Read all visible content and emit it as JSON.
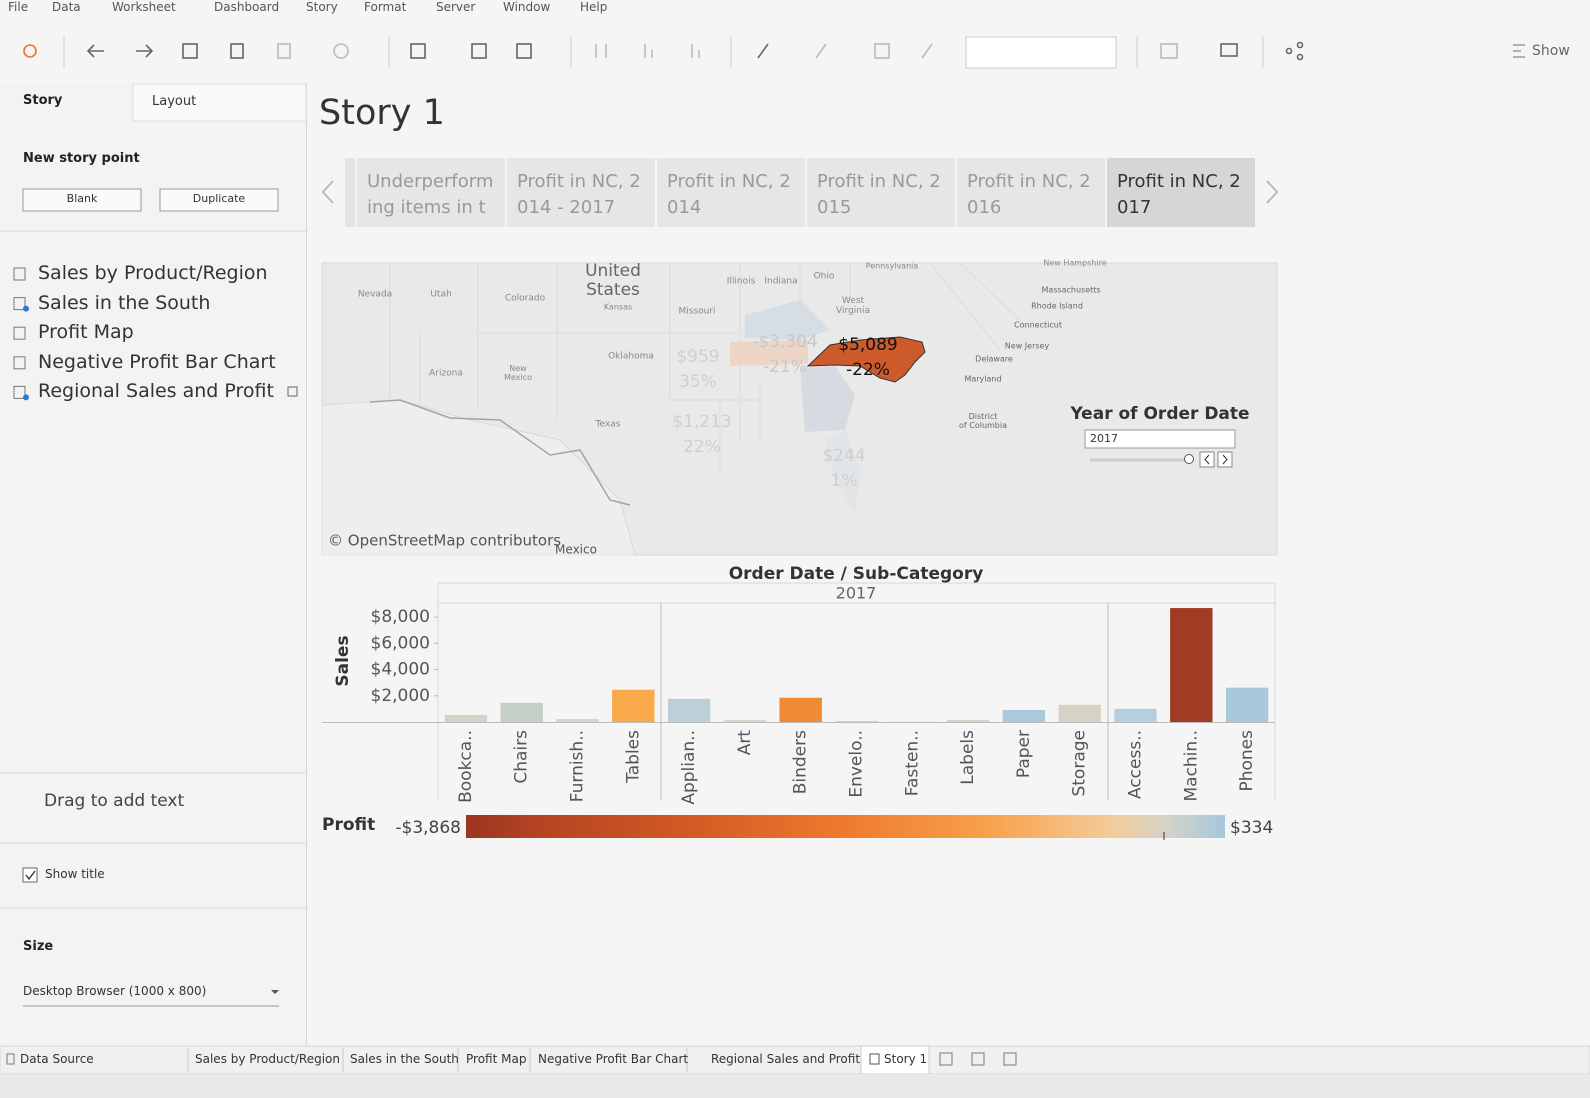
{
  "menu": [
    "File",
    "Data",
    "Worksheet",
    "Dashboard",
    "Story",
    "Format",
    "Server",
    "Window",
    "Help"
  ],
  "toolbar": {
    "show_me": "Show"
  },
  "sidebar": {
    "tabs": [
      "Story",
      "Layout"
    ],
    "new_story_point": "New story point",
    "buttons": [
      "Blank",
      "Duplicate"
    ],
    "sheets": [
      "Sales by Product/Region",
      "Sales in the South",
      "Profit Map",
      "Negative Profit Bar Chart",
      "Regional Sales and Profit"
    ],
    "drag_text": "Drag to add text",
    "show_title": "Show title",
    "size_label": "Size",
    "size_value": "Desktop Browser (1000 x 800)"
  },
  "story": {
    "title": "Story 1",
    "points": [
      "Underperforming items in the",
      "Profit in NC, 2014 - 2017",
      "Profit in NC, 2014",
      "Profit in NC, 2015",
      "Profit in NC, 2016",
      "Profit in NC, 2017"
    ]
  },
  "map": {
    "labels": [
      "United States",
      "Mexico",
      "Nevada",
      "Utah",
      "Colorado",
      "Kansas",
      "Missouri",
      "Illinois",
      "Indiana",
      "Ohio",
      "Pennsylvania",
      "West Virginia",
      "Oklahoma",
      "Arizona",
      "New Mexico",
      "Texas",
      "New Hampshire",
      "Massachusetts",
      "Rhode Island",
      "Connecticut",
      "New Jersey",
      "Delaware",
      "Maryland",
      "District of Columbia"
    ],
    "state_values": [
      {
        "value": "$5,089",
        "pct": "-22%"
      },
      {
        "value": "-$3,304",
        "pct": "-21%"
      },
      {
        "value": "$959",
        "pct": "35%"
      },
      {
        "value": "$1,213",
        "pct": "22%"
      },
      {
        "value": "$244",
        "pct": "1%"
      }
    ],
    "attribution": "© OpenStreetMap contributors",
    "filter_title": "Year of Order Date",
    "filter_value": "2017"
  },
  "chart_data": {
    "type": "bar",
    "title": "Order Date / Sub-Category",
    "subtitle": "2017",
    "y_label": "Sales",
    "categories": [
      "Bookca..",
      "Chairs",
      "Furnish..",
      "Tables",
      "Applian..",
      "Art",
      "Binders",
      "Envelo..",
      "Fasten..",
      "Labels",
      "Paper",
      "Storage",
      "Access..",
      "Machin..",
      "Phones"
    ],
    "values": [
      540,
      1460,
      230,
      2460,
      1770,
      150,
      1850,
      80,
      20,
      150,
      920,
      1310,
      1000,
      8690,
      2620
    ],
    "colors": [
      "#d4d1c6",
      "#c6cec8",
      "#d9d4c7",
      "#f9a94b",
      "#bdcfd9",
      "#dcd6c8",
      "#f08a34",
      "#cdd1d4",
      "#d6d1c8",
      "#d9d1c3",
      "#abc9dc",
      "#d7d3c4",
      "#b6cfdd",
      "#a13b24",
      "#a9c8dc"
    ],
    "ylim": [
      0,
      9000
    ],
    "yticks": [
      {
        "value": 2000,
        "label": "$2,000"
      },
      {
        "value": 4000,
        "label": "$4,000"
      },
      {
        "value": 6000,
        "label": "$6,000"
      },
      {
        "value": 8000,
        "label": "$8,000"
      }
    ],
    "legend": {
      "title": "Profit",
      "min_label": "-$3,868",
      "max_label": "$334"
    }
  },
  "bottom_tabs": [
    "Data Source",
    "Sales by Product/Region",
    "Sales in the South",
    "Profit Map",
    "Negative Profit Bar Chart",
    "Regional Sales and Profit",
    "Story 1"
  ]
}
